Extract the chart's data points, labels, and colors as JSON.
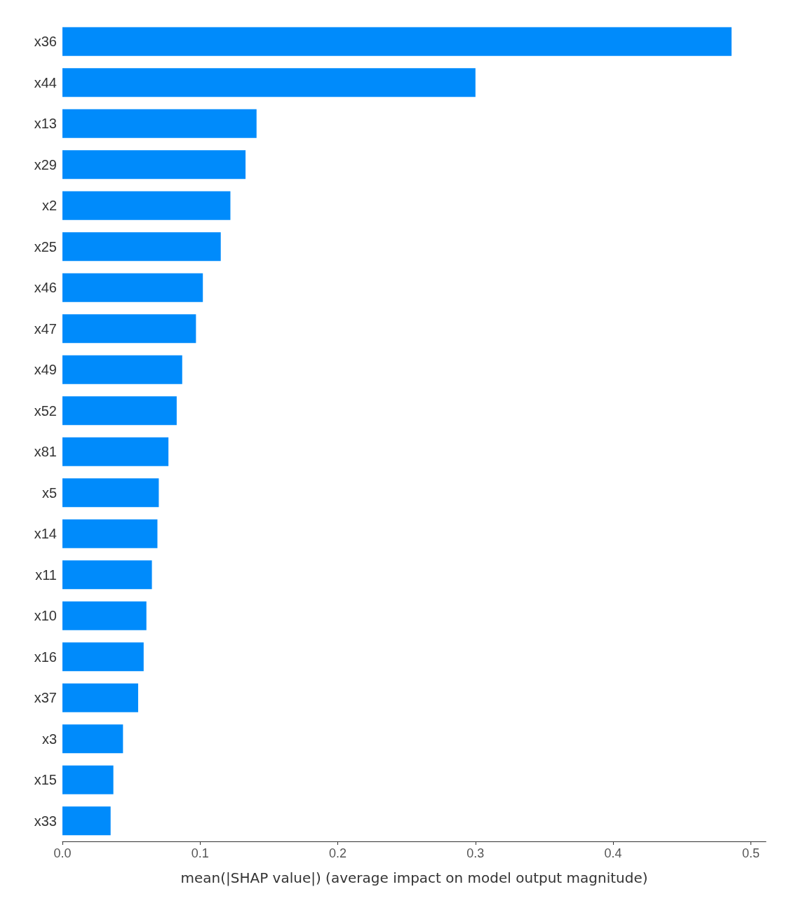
{
  "chart_data": {
    "type": "bar",
    "orientation": "horizontal",
    "xlabel": "mean(|SHAP value|) (average impact on model output magnitude)",
    "categories": [
      "x36",
      "x44",
      "x13",
      "x29",
      "x2",
      "x25",
      "x46",
      "x47",
      "x49",
      "x52",
      "x81",
      "x5",
      "x14",
      "x11",
      "x10",
      "x16",
      "x37",
      "x3",
      "x15",
      "x33"
    ],
    "values": [
      0.486,
      0.3,
      0.141,
      0.133,
      0.122,
      0.115,
      0.102,
      0.097,
      0.087,
      0.083,
      0.077,
      0.07,
      0.069,
      0.065,
      0.061,
      0.059,
      0.055,
      0.044,
      0.037,
      0.035
    ],
    "color": "#008bfb",
    "xlim": [
      0,
      0.511
    ],
    "xticks": [
      {
        "value": 0,
        "label": "0.0"
      },
      {
        "value": 0.1,
        "label": "0.1"
      },
      {
        "value": 0.2,
        "label": "0.2"
      },
      {
        "value": 0.3,
        "label": "0.3"
      },
      {
        "value": 0.4,
        "label": "0.4"
      },
      {
        "value": 0.5,
        "label": "0.5"
      }
    ],
    "grid": false
  }
}
